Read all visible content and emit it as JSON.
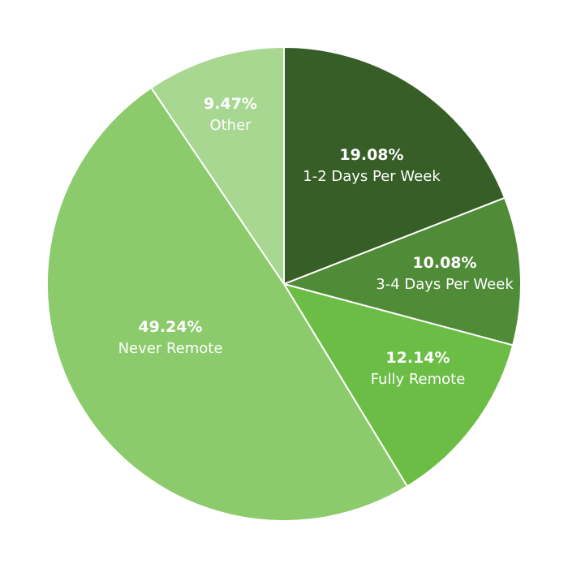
{
  "chart_data": {
    "type": "pie",
    "title": "",
    "start_angle_deg": 0,
    "direction": "clockwise",
    "slices": [
      {
        "label": "1-2 Days Per Week",
        "value": 19.08,
        "value_label": "19.08%",
        "color": "#365e26"
      },
      {
        "label": "3-4 Days Per Week",
        "value": 10.08,
        "value_label": "10.08%",
        "color": "#508b37"
      },
      {
        "label": "Fully Remote",
        "value": 12.14,
        "value_label": "12.14%",
        "color": "#6cbd45"
      },
      {
        "label": "Never Remote",
        "value": 49.24,
        "value_label": "49.24%",
        "color": "#8ccb6b"
      },
      {
        "label": "Other",
        "value": 9.47,
        "value_label": "9.47%",
        "color": "#a7d791"
      }
    ]
  }
}
